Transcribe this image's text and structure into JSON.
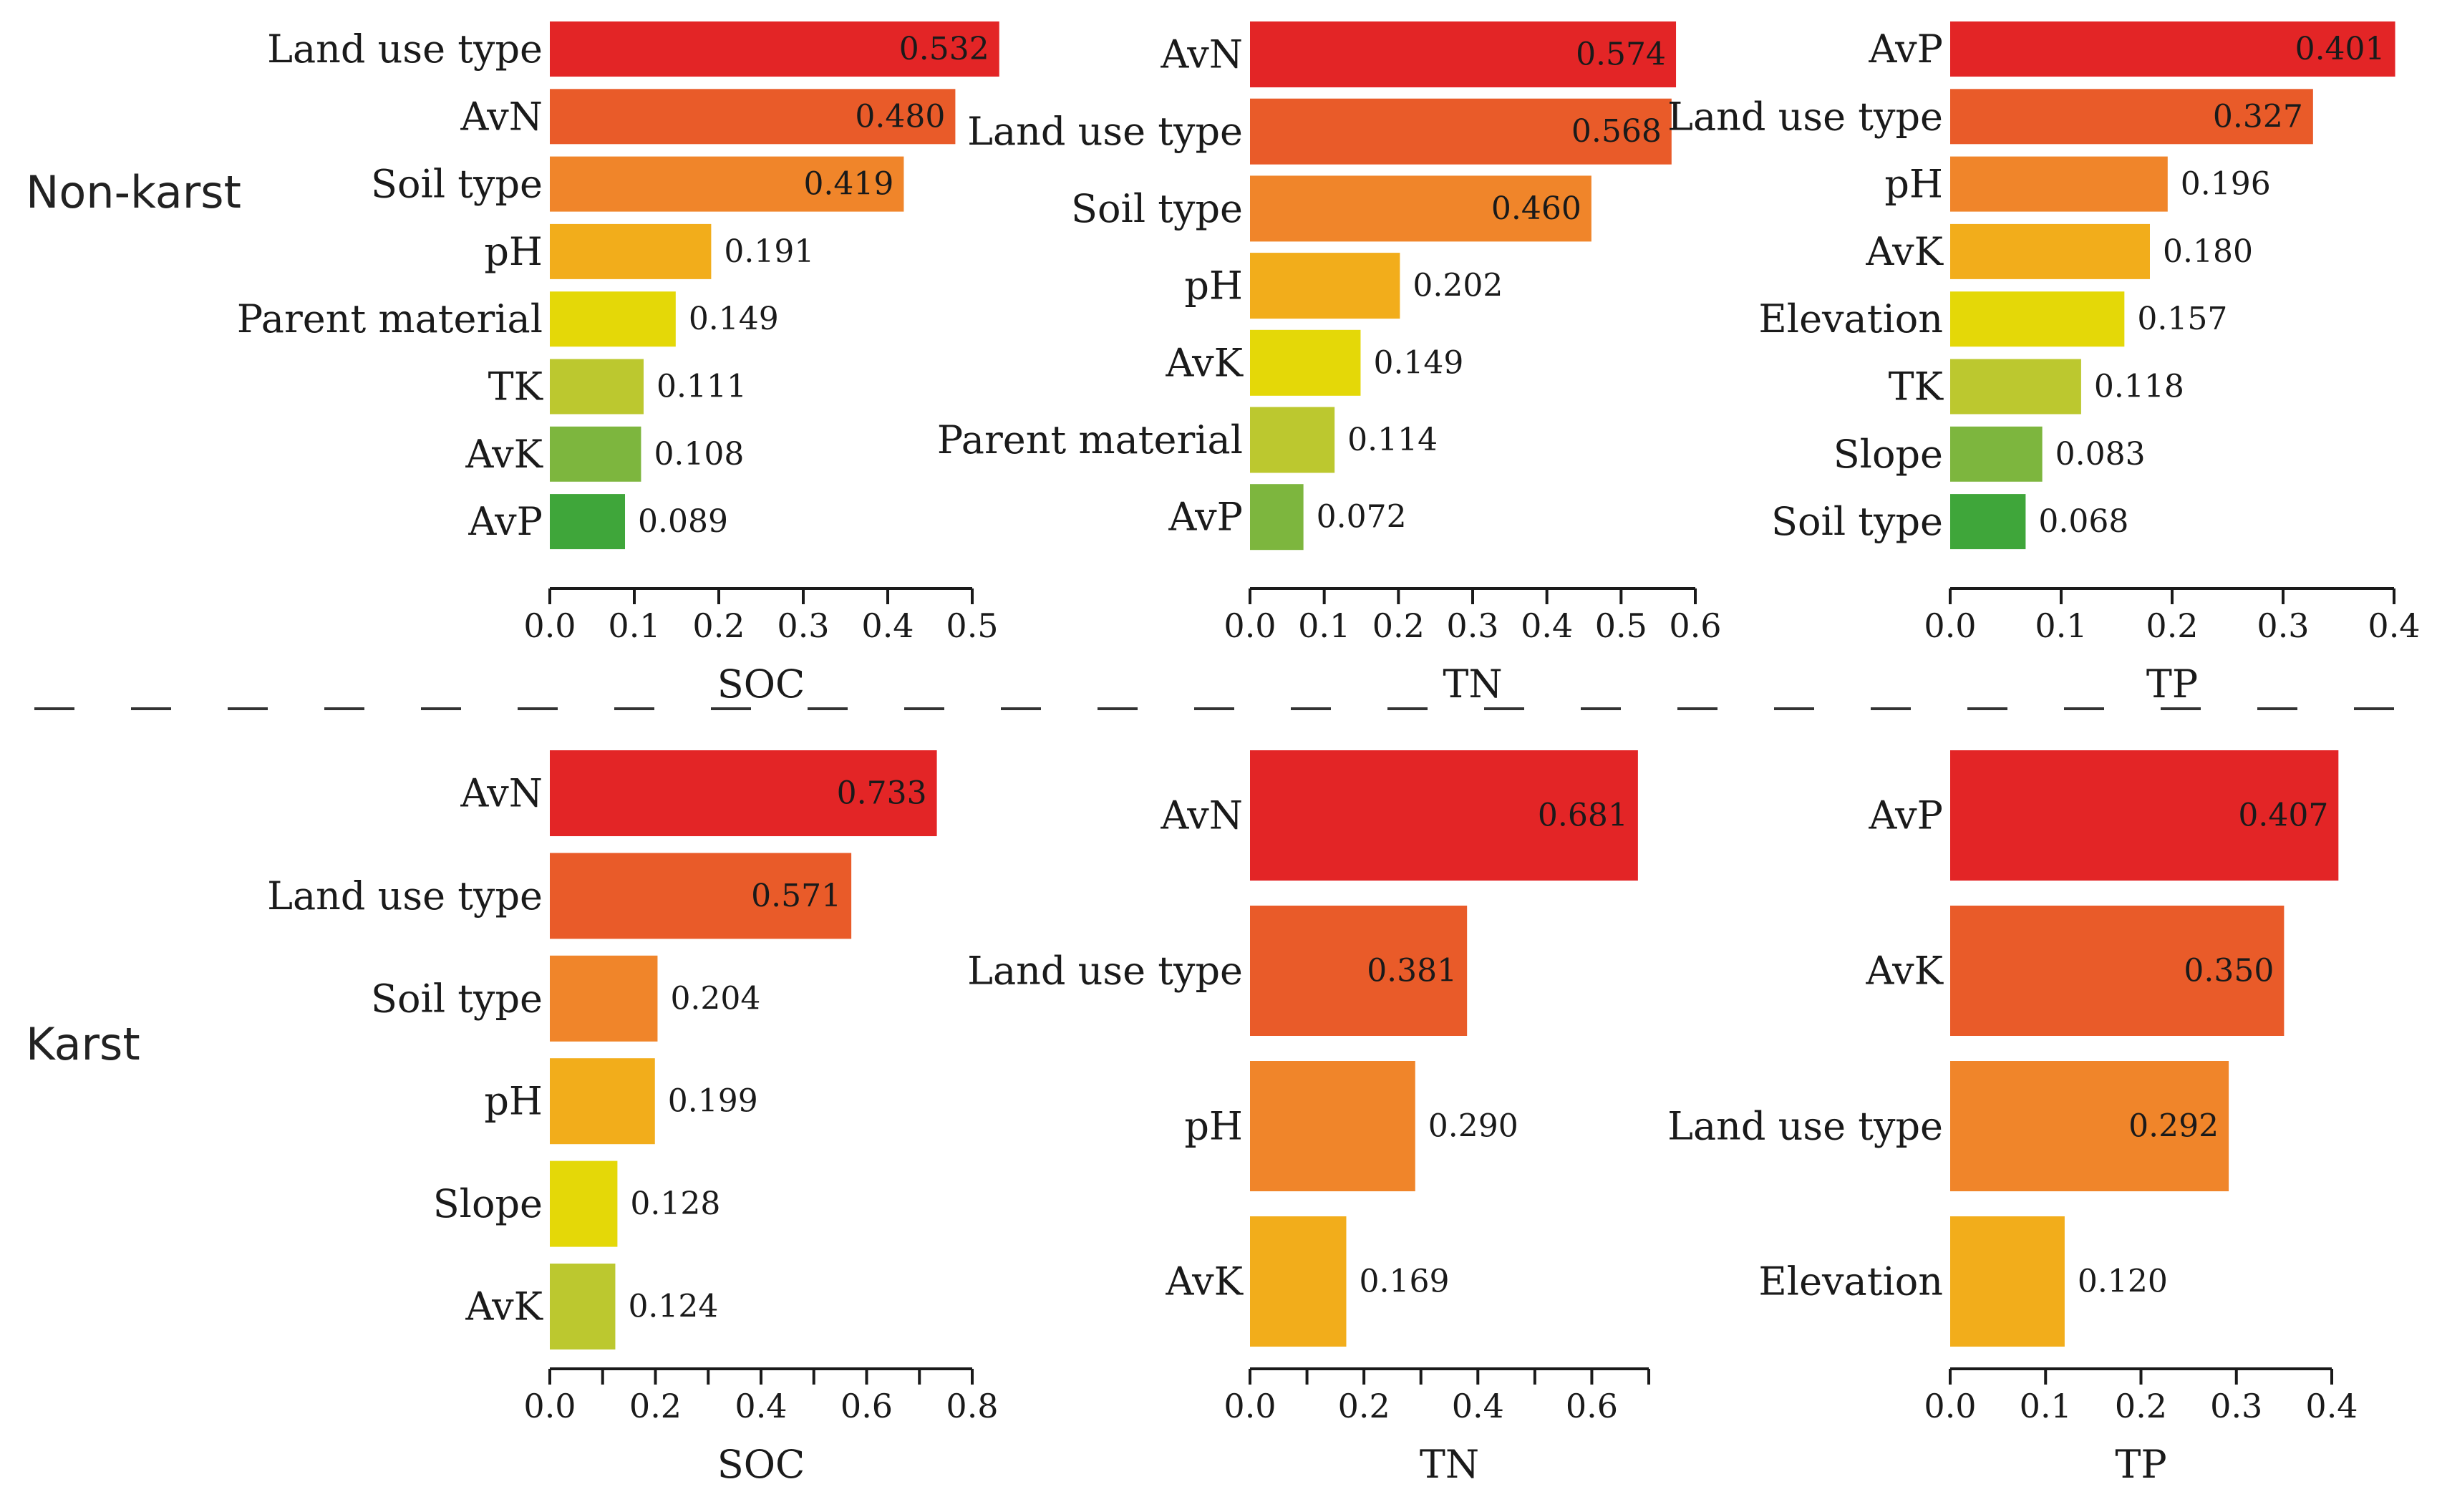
{
  "row_labels": {
    "top": "Non-karst",
    "bottom": "Karst"
  },
  "chart_data": [
    {
      "type": "bar",
      "orientation": "horizontal",
      "group": "Non-karst",
      "xlabel": "SOC",
      "categories": [
        "Land use type",
        "AvN",
        "Soil type",
        "pH",
        "Parent material",
        "TK",
        "AvK",
        "AvP"
      ],
      "values": [
        0.532,
        0.48,
        0.419,
        0.191,
        0.149,
        0.111,
        0.108,
        0.089
      ],
      "value_labels": [
        "0.532",
        "0.480",
        "0.419",
        "0.191",
        "0.149",
        "0.111",
        "0.108",
        "0.089"
      ],
      "xlim": [
        0,
        0.5
      ],
      "ticks": [
        0,
        0.1,
        0.2,
        0.3,
        0.4,
        0.5
      ],
      "tick_labels": [
        "0.0",
        "0.1",
        "0.2",
        "0.3",
        "0.4",
        "0.5"
      ],
      "colors": [
        "#e32526",
        "#e95b29",
        "#f0852a",
        "#f2ad1b",
        "#e4d808",
        "#bcc82f",
        "#7db63e",
        "#3fa63a"
      ]
    },
    {
      "type": "bar",
      "orientation": "horizontal",
      "group": "Non-karst",
      "xlabel": "TN",
      "categories": [
        "AvN",
        "Land use type",
        "Soil type",
        "pH",
        "AvK",
        "Parent material",
        "AvP"
      ],
      "values": [
        0.574,
        0.568,
        0.46,
        0.202,
        0.149,
        0.114,
        0.072
      ],
      "value_labels": [
        "0.574",
        "0.568",
        "0.460",
        "0.202",
        "0.149",
        "0.114",
        "0.072"
      ],
      "xlim": [
        0,
        0.6
      ],
      "ticks": [
        0,
        0.1,
        0.2,
        0.3,
        0.4,
        0.5,
        0.6
      ],
      "tick_labels": [
        "0.0",
        "0.1",
        "0.2",
        "0.3",
        "0.4",
        "0.5",
        "0.6"
      ],
      "colors": [
        "#e32526",
        "#e95b29",
        "#f0852a",
        "#f2ad1b",
        "#e4d808",
        "#bcc82f",
        "#7db63e"
      ]
    },
    {
      "type": "bar",
      "orientation": "horizontal",
      "group": "Non-karst",
      "xlabel": "TP",
      "categories": [
        "AvP",
        "Land use type",
        "pH",
        "AvK",
        "Elevation",
        "TK",
        "Slope",
        "Soil type"
      ],
      "values": [
        0.401,
        0.327,
        0.196,
        0.18,
        0.157,
        0.118,
        0.083,
        0.068
      ],
      "value_labels": [
        "0.401",
        "0.327",
        "0.196",
        "0.180",
        "0.157",
        "0.118",
        "0.083",
        "0.068"
      ],
      "xlim": [
        0,
        0.4
      ],
      "ticks": [
        0,
        0.1,
        0.2,
        0.3,
        0.4
      ],
      "tick_labels": [
        "0.0",
        "0.1",
        "0.2",
        "0.3",
        "0.4"
      ],
      "colors": [
        "#e32526",
        "#e95b29",
        "#f0852a",
        "#f2ad1b",
        "#e4d808",
        "#bcc82f",
        "#7db63e",
        "#3fa63a"
      ]
    },
    {
      "type": "bar",
      "orientation": "horizontal",
      "group": "Karst",
      "xlabel": "SOC",
      "categories": [
        "AvN",
        "Land use type",
        "Soil type",
        "pH",
        "Slope",
        "AvK"
      ],
      "values": [
        0.733,
        0.571,
        0.204,
        0.199,
        0.128,
        0.124
      ],
      "value_labels": [
        "0.733",
        "0.571",
        "0.204",
        "0.199",
        "0.128",
        "0.124"
      ],
      "xlim": [
        0,
        0.8
      ],
      "ticks": [
        0,
        0.1,
        0.2,
        0.3,
        0.4,
        0.5,
        0.6,
        0.7,
        0.8
      ],
      "tick_labels": [
        "0.0",
        "",
        "0.2",
        "",
        "0.4",
        "",
        "0.6",
        "",
        "0.8"
      ],
      "colors": [
        "#e32526",
        "#e95b29",
        "#f0852a",
        "#f2ad1b",
        "#e4d808",
        "#bcc82f"
      ]
    },
    {
      "type": "bar",
      "orientation": "horizontal",
      "group": "Karst",
      "xlabel": "TN",
      "categories": [
        "AvN",
        "Land use type",
        "pH",
        "AvK"
      ],
      "values": [
        0.681,
        0.381,
        0.29,
        0.169
      ],
      "value_labels": [
        "0.681",
        "0.381",
        "0.290",
        "0.169"
      ],
      "xlim": [
        0,
        0.7
      ],
      "ticks": [
        0,
        0.1,
        0.2,
        0.3,
        0.4,
        0.5,
        0.6,
        0.7
      ],
      "tick_labels": [
        "0.0",
        "",
        "0.2",
        "",
        "0.4",
        "",
        "0.6",
        ""
      ],
      "colors": [
        "#e32526",
        "#e95b29",
        "#f0852a",
        "#f2ad1b"
      ]
    },
    {
      "type": "bar",
      "orientation": "horizontal",
      "group": "Karst",
      "xlabel": "TP",
      "categories": [
        "AvP",
        "AvK",
        "Land use type",
        "Elevation"
      ],
      "values": [
        0.407,
        0.35,
        0.292,
        0.12
      ],
      "value_labels": [
        "0.407",
        "0.350",
        "0.292",
        "0.120"
      ],
      "xlim": [
        0,
        0.4
      ],
      "ticks": [
        0,
        0.1,
        0.2,
        0.3,
        0.4
      ],
      "tick_labels": [
        "0.0",
        "0.1",
        "0.2",
        "0.3",
        "0.4"
      ],
      "colors": [
        "#e32526",
        "#e95b29",
        "#f0852a",
        "#f2ad1b"
      ]
    }
  ]
}
